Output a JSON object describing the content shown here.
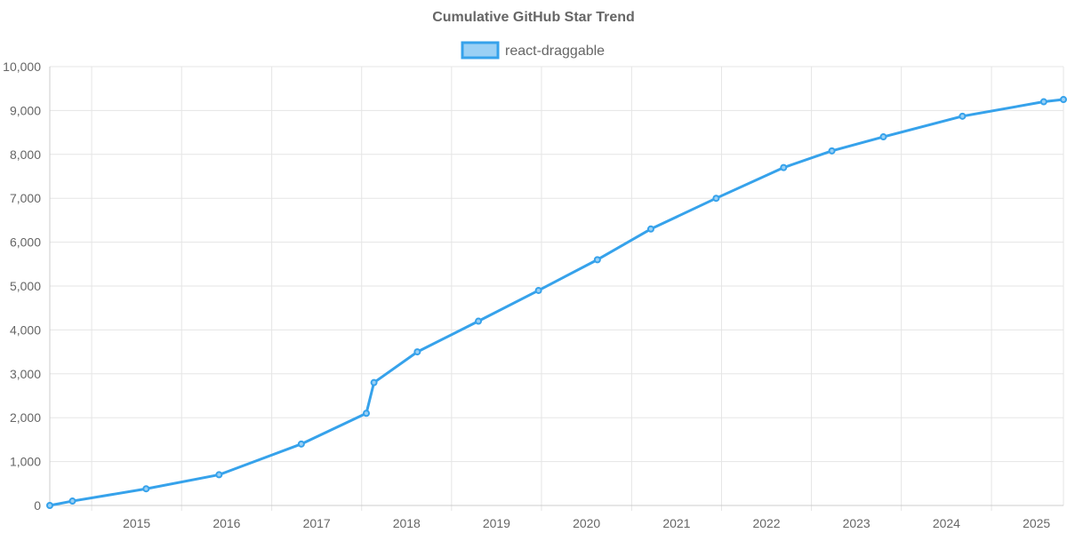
{
  "chart_data": {
    "type": "line",
    "title": "Cumulative GitHub Star Trend",
    "xlabel": "",
    "ylabel": "",
    "legend_position": "top-center",
    "grid": true,
    "x_ticks": [
      "2015",
      "2016",
      "2017",
      "2018",
      "2019",
      "2020",
      "2021",
      "2022",
      "2023",
      "2024",
      "2025"
    ],
    "y_ticks": [
      "0",
      "1,000",
      "2,000",
      "3,000",
      "4,000",
      "5,000",
      "6,000",
      "7,000",
      "8,000",
      "9,000",
      "10,000"
    ],
    "xlim": [
      "2014-07-15",
      "2025-10-20"
    ],
    "ylim": [
      0,
      10000
    ],
    "series": [
      {
        "name": "react-draggable",
        "color": "#36a2eb",
        "fill_color": "#9ad0f5",
        "points": [
          {
            "x": "2014-07-15",
            "y": 0
          },
          {
            "x": "2014-10-15",
            "y": 100
          },
          {
            "x": "2015-08-10",
            "y": 380
          },
          {
            "x": "2016-06-01",
            "y": 700
          },
          {
            "x": "2017-05-01",
            "y": 1400
          },
          {
            "x": "2018-01-20",
            "y": 2100
          },
          {
            "x": "2018-02-20",
            "y": 2800
          },
          {
            "x": "2018-08-15",
            "y": 3500
          },
          {
            "x": "2019-04-20",
            "y": 4200
          },
          {
            "x": "2019-12-20",
            "y": 4900
          },
          {
            "x": "2020-08-15",
            "y": 5600
          },
          {
            "x": "2021-03-20",
            "y": 6300
          },
          {
            "x": "2021-12-10",
            "y": 7000
          },
          {
            "x": "2022-09-10",
            "y": 7700
          },
          {
            "x": "2023-03-25",
            "y": 8080
          },
          {
            "x": "2023-10-20",
            "y": 8400
          },
          {
            "x": "2024-09-05",
            "y": 8870
          },
          {
            "x": "2025-08-01",
            "y": 9200
          },
          {
            "x": "2025-10-20",
            "y": 9250
          }
        ]
      }
    ]
  }
}
